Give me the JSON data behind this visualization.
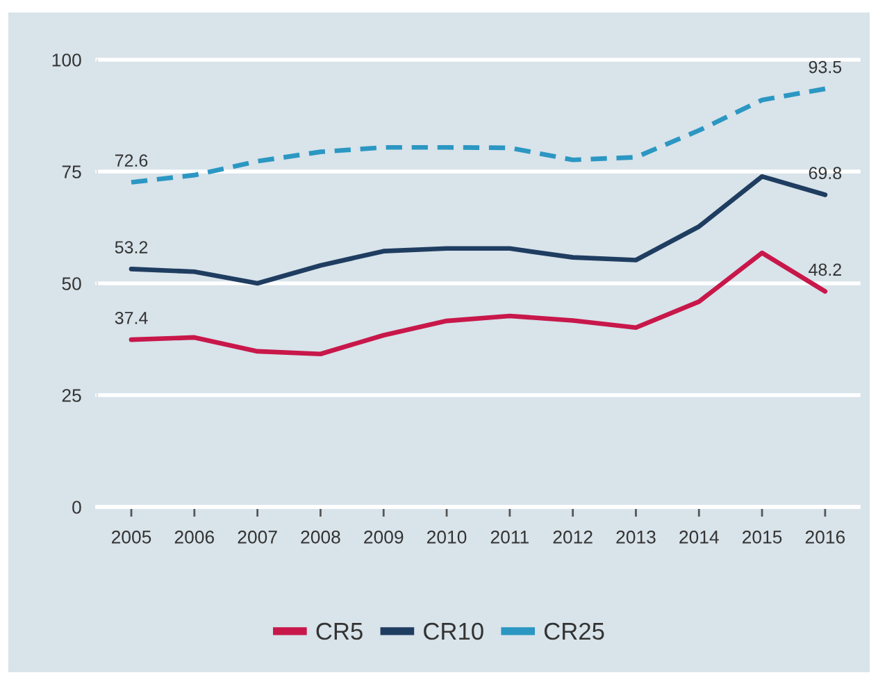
{
  "chart_data": {
    "type": "line",
    "categories": [
      "2005",
      "2006",
      "2007",
      "2008",
      "2009",
      "2010",
      "2011",
      "2012",
      "2013",
      "2014",
      "2015",
      "2016"
    ],
    "series": [
      {
        "name": "CR5",
        "color": "#c8174a",
        "values": [
          37.4,
          37.9,
          34.8,
          34.2,
          38.4,
          41.6,
          42.7,
          41.7,
          40.1,
          45.9,
          56.8,
          48.2
        ],
        "value_labels": [
          "37.4",
          null,
          null,
          null,
          null,
          null,
          null,
          null,
          null,
          null,
          null,
          "48.2"
        ]
      },
      {
        "name": "CR10",
        "color": "#1f3d60",
        "values": [
          53.2,
          52.6,
          50.0,
          54.0,
          57.2,
          57.8,
          57.8,
          55.8,
          55.2,
          62.7,
          73.9,
          69.8
        ],
        "value_labels": [
          "53.2",
          null,
          null,
          null,
          null,
          null,
          null,
          null,
          null,
          null,
          null,
          "69.8"
        ]
      },
      {
        "name": "CR25",
        "color": "#2b97c2",
        "line_style": "dashed",
        "values": [
          72.6,
          74.2,
          77.3,
          79.4,
          80.4,
          80.4,
          80.3,
          77.6,
          78.2,
          84.2,
          91.0,
          93.5
        ],
        "value_labels": [
          "72.6",
          null,
          null,
          null,
          null,
          null,
          null,
          null,
          null,
          null,
          null,
          "93.5"
        ]
      }
    ],
    "ylim": [
      0,
      100
    ],
    "yticks": [
      0,
      25,
      50,
      75,
      100
    ],
    "grid": "y",
    "legend": "bottom",
    "line_style": "solid"
  }
}
